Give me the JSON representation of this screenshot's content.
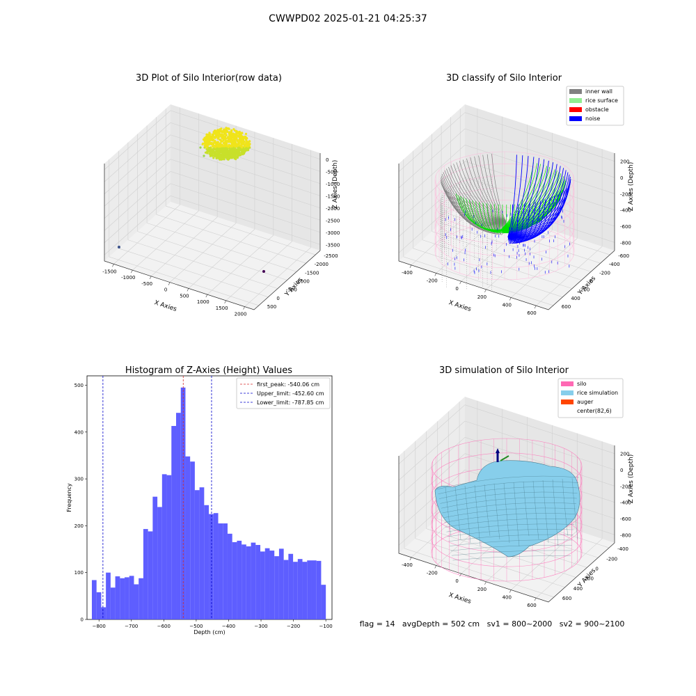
{
  "suptitle": "CWWPD02 2025-01-21 04:25:37",
  "status_line": "flag = 14   avgDepth = 502 cm   sv1 = 800~2000   sv2 = 900~2100",
  "colors": {
    "histogram_bar": "#5050ff",
    "first_peak_line": "#d62728",
    "limit_lines": "#0000cc",
    "inner_wall": "#808080",
    "rice_surface": "#90ee90",
    "obstacle": "#ff0000",
    "noise": "#0000ff",
    "silo": "#ff69b4",
    "rice_simulation": "#87ceeb",
    "auger": "#ff4500",
    "raw_points": "#e6e61a"
  },
  "chart_data": [
    {
      "type": "scatter",
      "title": "3D Plot of Silo Interior(row data)",
      "xlabel": "X Axies",
      "ylabel": "Y Axies",
      "zlabel": "Z Axies (Depth)",
      "x_ticks": [
        "-1500",
        "-1000",
        "-500",
        "0",
        "500",
        "1000",
        "1500",
        "2000"
      ],
      "y_ticks": [
        "500",
        "0",
        "-500",
        "-1000",
        "-1500",
        "-2000",
        "-2500"
      ],
      "z_ticks": [
        "0",
        "-500",
        "-1000",
        "-1500",
        "-2000",
        "-2500",
        "-3000",
        "-3500"
      ],
      "xlim": [
        -1700,
        2100
      ],
      "ylim": [
        -2700,
        700
      ],
      "zlim": [
        -3800,
        200
      ]
    },
    {
      "type": "scatter",
      "title": "3D classify of Silo Interior",
      "xlabel": "X Axies",
      "ylabel": "Y Axies",
      "zlabel": "Z Axies (Depth)",
      "x_ticks": [
        "-400",
        "-200",
        "0",
        "200",
        "400",
        "600"
      ],
      "y_ticks": [
        "600",
        "400",
        "200",
        "0",
        "-200",
        "-400",
        "-600"
      ],
      "z_ticks": [
        "200",
        "0",
        "-200",
        "-400",
        "-600",
        "-800"
      ],
      "legend": [
        "inner wall",
        "rice surface",
        "obstacle",
        "noise"
      ],
      "legend_position": "top-right"
    },
    {
      "type": "bar",
      "title": "Histogram of Z-Axies (Height) Values",
      "xlabel": "Depth (cm)",
      "ylabel": "Frequency",
      "xlim": [
        -837,
        -81
      ],
      "ylim": [
        0,
        520
      ],
      "x_ticks": [
        -800,
        -700,
        -600,
        -500,
        -400,
        -300,
        -200,
        -100
      ],
      "y_ticks": [
        0,
        100,
        200,
        300,
        400,
        500
      ],
      "bin_width": 14.44,
      "bin_start": -822,
      "values": [
        84,
        58,
        26,
        100,
        68,
        92,
        88,
        90,
        93,
        75,
        88,
        193,
        188,
        262,
        240,
        310,
        308,
        413,
        441,
        495,
        348,
        337,
        276,
        282,
        244,
        225,
        227,
        205,
        205,
        183,
        165,
        168,
        160,
        156,
        164,
        159,
        145,
        152,
        147,
        135,
        151,
        127,
        140,
        123,
        129,
        123,
        126,
        126,
        125,
        74
      ],
      "vlines": [
        {
          "label": "first_peak: -540.06 cm",
          "x": -540.06,
          "color": "#d62728"
        },
        {
          "label": "Upper_limit: -452.60 cm",
          "x": -452.6,
          "color": "#0000cc"
        },
        {
          "label": "Lower_limit: -787.85 cm",
          "x": -787.85,
          "color": "#0000cc"
        }
      ],
      "legend_position": "top-right"
    },
    {
      "type": "area",
      "title": "3D simulation of Silo Interior",
      "xlabel": "X Axies",
      "ylabel": "Y Axies",
      "zlabel": "Z Axies (Depth)",
      "x_ticks": [
        "-400",
        "-200",
        "0",
        "200",
        "400",
        "600"
      ],
      "y_ticks": [
        "600",
        "400",
        "200",
        "0",
        "-200",
        "-400"
      ],
      "z_ticks": [
        "200",
        "0",
        "-200",
        "-400",
        "-600",
        "-800"
      ],
      "legend": [
        "silo",
        "rice simulation",
        "auger",
        "center(82,6)"
      ],
      "legend_position": "top-right"
    }
  ]
}
